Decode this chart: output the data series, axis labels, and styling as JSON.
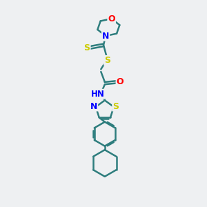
{
  "background_color": "#eef0f2",
  "line_color": "#2d7d7d",
  "bond_width": 1.8,
  "atom_colors": {
    "O": "#ff0000",
    "N": "#0000ff",
    "S": "#cccc00",
    "H": "#888888",
    "C": "#2d7d7d"
  },
  "figsize": [
    3.0,
    3.0
  ],
  "dpi": 100
}
